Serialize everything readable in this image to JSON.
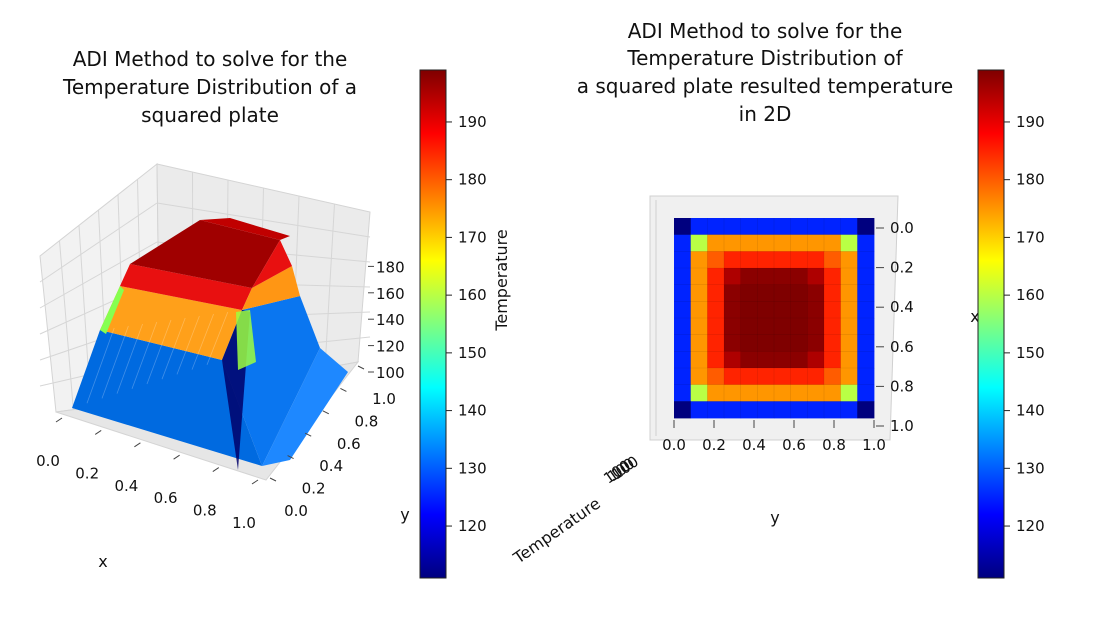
{
  "colorscale": [
    "#00007f",
    "#0000ff",
    "#007fff",
    "#00ffff",
    "#7fff7f",
    "#ffff00",
    "#ff7f00",
    "#ff0000",
    "#7f0000"
  ],
  "chart_data": [
    {
      "type": "surface3d",
      "title": [
        "ADI Method to solve for the",
        "Temperature Distribution of a",
        "squared plate"
      ],
      "xlabel": "x",
      "ylabel": "y",
      "zlabel": "Temperature",
      "x_ticks": [
        "0.0",
        "0.2",
        "0.4",
        "0.6",
        "0.8",
        "1.0"
      ],
      "y_ticks": [
        "0.0",
        "0.2",
        "0.4",
        "0.6",
        "0.8",
        "1.0"
      ],
      "z_ticks": [
        "100",
        "120",
        "140",
        "160",
        "180"
      ],
      "z_range": [
        100,
        200
      ]
    },
    {
      "type": "heatmap",
      "title": [
        "ADI Method to solve for the",
        "Temperature Distribution of",
        "a squared plate resulted temperature",
        "in 2D"
      ],
      "xlabel": "y",
      "ylabel": "x",
      "zlabel": "Temperature",
      "x_ticks": [
        "0.0",
        "0.2",
        "0.4",
        "0.6",
        "0.8",
        "1.0"
      ],
      "y_ticks": [
        "0.0",
        "0.2",
        "0.4",
        "0.6",
        "0.8",
        "1.0"
      ],
      "z_tick_clutter": "100",
      "values": [
        [
          110,
          125,
          125,
          125,
          125,
          125,
          125,
          125,
          125,
          125,
          125,
          110
        ],
        [
          125,
          160,
          175,
          175,
          175,
          175,
          175,
          175,
          175,
          175,
          160,
          125
        ],
        [
          125,
          175,
          180,
          185,
          185,
          185,
          185,
          185,
          185,
          180,
          175,
          125
        ],
        [
          125,
          175,
          185,
          195,
          198,
          198,
          198,
          198,
          195,
          185,
          175,
          125
        ],
        [
          125,
          175,
          185,
          198,
          199,
          199,
          199,
          199,
          198,
          185,
          175,
          125
        ],
        [
          125,
          175,
          185,
          198,
          199,
          200,
          200,
          199,
          198,
          185,
          175,
          125
        ],
        [
          125,
          175,
          185,
          198,
          199,
          200,
          200,
          199,
          198,
          185,
          175,
          125
        ],
        [
          125,
          175,
          185,
          198,
          199,
          199,
          199,
          199,
          198,
          185,
          175,
          125
        ],
        [
          125,
          175,
          185,
          195,
          198,
          198,
          198,
          198,
          195,
          185,
          175,
          125
        ],
        [
          125,
          175,
          180,
          185,
          185,
          185,
          185,
          185,
          185,
          180,
          175,
          125
        ],
        [
          125,
          160,
          175,
          175,
          175,
          175,
          175,
          175,
          175,
          175,
          160,
          125
        ],
        [
          110,
          125,
          125,
          125,
          125,
          125,
          125,
          125,
          125,
          125,
          125,
          110
        ]
      ]
    }
  ],
  "colorbars": [
    {
      "label": "Temperature",
      "range": [
        111,
        199
      ],
      "ticks": [
        "120",
        "130",
        "140",
        "150",
        "160",
        "170",
        "180",
        "190"
      ]
    },
    {
      "label": "",
      "range": [
        111,
        199
      ],
      "ticks": [
        "120",
        "130",
        "140",
        "150",
        "160",
        "170",
        "180",
        "190"
      ]
    }
  ]
}
